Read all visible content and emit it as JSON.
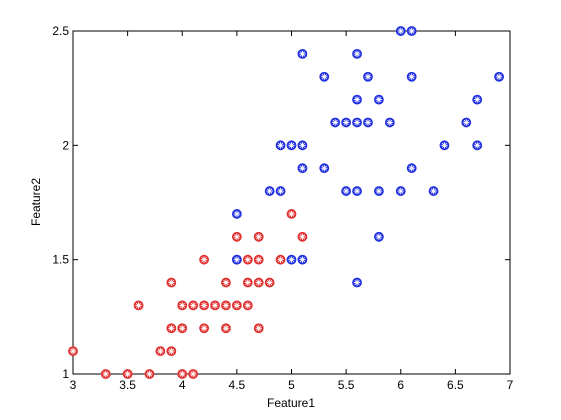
{
  "chart_data": {
    "type": "scatter",
    "title": "",
    "xlabel": "Feature1",
    "ylabel": "Feature2",
    "xlim": [
      3,
      7
    ],
    "ylim": [
      1,
      2.5
    ],
    "x_ticks": [
      "3",
      "3.5",
      "4",
      "4.5",
      "5",
      "5.5",
      "6",
      "6.5",
      "7"
    ],
    "y_ticks": [
      "1",
      "1.5",
      "2",
      "2.5"
    ],
    "grid": false,
    "legend": "none",
    "colors": {
      "red": "#e03030",
      "blue": "#2030e0"
    },
    "series": [
      {
        "color": "red",
        "marker": "circled-asterisk",
        "points": [
          [
            3.0,
            1.1
          ],
          [
            3.3,
            1.0
          ],
          [
            3.5,
            1.0
          ],
          [
            3.6,
            1.3
          ],
          [
            3.7,
            1.0
          ],
          [
            3.8,
            1.1
          ],
          [
            3.9,
            1.1
          ],
          [
            3.9,
            1.2
          ],
          [
            3.9,
            1.4
          ],
          [
            4.0,
            1.0
          ],
          [
            4.0,
            1.2
          ],
          [
            4.0,
            1.3
          ],
          [
            4.1,
            1.0
          ],
          [
            4.1,
            1.3
          ],
          [
            4.2,
            1.2
          ],
          [
            4.2,
            1.3
          ],
          [
            4.2,
            1.5
          ],
          [
            4.3,
            1.3
          ],
          [
            4.4,
            1.2
          ],
          [
            4.4,
            1.3
          ],
          [
            4.4,
            1.4
          ],
          [
            4.5,
            1.3
          ],
          [
            4.5,
            1.5
          ],
          [
            4.5,
            1.6
          ],
          [
            4.6,
            1.3
          ],
          [
            4.6,
            1.4
          ],
          [
            4.6,
            1.5
          ],
          [
            4.7,
            1.2
          ],
          [
            4.7,
            1.4
          ],
          [
            4.7,
            1.5
          ],
          [
            4.7,
            1.6
          ],
          [
            4.8,
            1.4
          ],
          [
            4.9,
            1.5
          ],
          [
            5.0,
            1.7
          ],
          [
            5.1,
            1.6
          ]
        ]
      },
      {
        "color": "blue",
        "marker": "circled-asterisk",
        "points": [
          [
            4.5,
            1.7
          ],
          [
            4.5,
            1.5
          ],
          [
            4.8,
            1.8
          ],
          [
            4.9,
            1.8
          ],
          [
            4.9,
            2.0
          ],
          [
            5.0,
            1.5
          ],
          [
            5.0,
            2.0
          ],
          [
            5.1,
            1.5
          ],
          [
            5.1,
            1.9
          ],
          [
            5.1,
            2.0
          ],
          [
            5.1,
            2.4
          ],
          [
            5.3,
            1.9
          ],
          [
            5.3,
            2.3
          ],
          [
            5.4,
            2.1
          ],
          [
            5.5,
            1.8
          ],
          [
            5.5,
            2.1
          ],
          [
            5.6,
            1.4
          ],
          [
            5.6,
            1.8
          ],
          [
            5.6,
            2.1
          ],
          [
            5.6,
            2.2
          ],
          [
            5.6,
            2.4
          ],
          [
            5.7,
            2.1
          ],
          [
            5.7,
            2.3
          ],
          [
            5.8,
            1.6
          ],
          [
            5.8,
            1.8
          ],
          [
            5.8,
            2.2
          ],
          [
            5.9,
            2.1
          ],
          [
            6.0,
            1.8
          ],
          [
            6.0,
            2.5
          ],
          [
            6.1,
            1.9
          ],
          [
            6.1,
            2.3
          ],
          [
            6.1,
            2.5
          ],
          [
            6.3,
            1.8
          ],
          [
            6.4,
            2.0
          ],
          [
            6.6,
            2.1
          ],
          [
            6.7,
            2.0
          ],
          [
            6.7,
            2.2
          ],
          [
            6.9,
            2.3
          ]
        ]
      }
    ]
  }
}
